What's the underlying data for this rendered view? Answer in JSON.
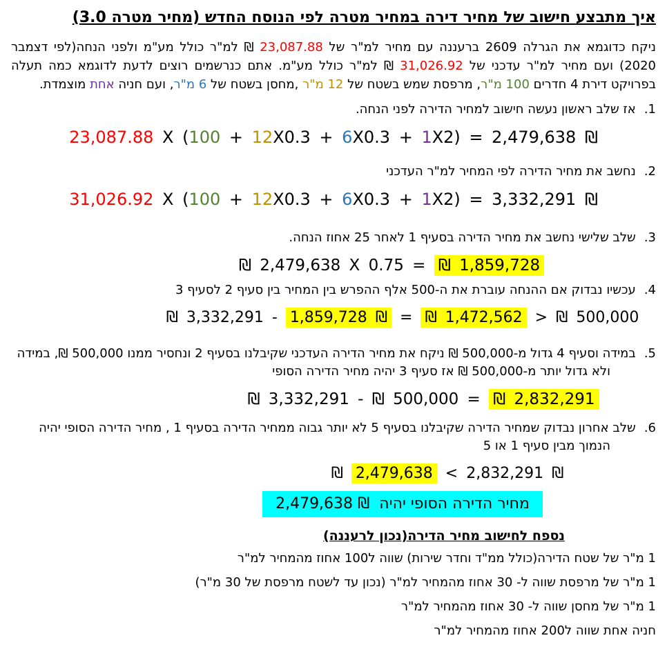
{
  "title": "איך מתבצע חישוב של מחיר דירה במחיר מטרה לפי הנוסח החדש (מחיר מטרה 3.0)",
  "colors": {
    "red": "#FF0000",
    "green": "#538135",
    "gold": "#BF9000",
    "blue": "#2E75B6",
    "purple": "#7030A0",
    "highlight_yellow": "#FFFF00",
    "highlight_cyan": "#00FFFF"
  },
  "intro": {
    "segments": [
      {
        "t": "ניקח כדוגמא את הגרלה 2609 ברעננה עם מחיר למ\"ר של "
      },
      {
        "t": "23,087.88",
        "c": "red"
      },
      {
        "t": " ₪ למ\"ר כולל מע\"מ ולפני הנחה(לפי דצמבר 2020) ועם מחיר למ\"ר עדכני של "
      },
      {
        "t": "31,026.92",
        "c": "red"
      },
      {
        "t": " ₪ למ\"ר כולל מע\"מ. אתם כנרשמים רוצים לדעת לדוגמא כמה תעלה בפרויקט דירת 4 חדרים "
      },
      {
        "t": "100 מ\"ר",
        "c": "green"
      },
      {
        "t": ",  מרפסת שמש בשטח של "
      },
      {
        "t": "12 מ\"ר",
        "c": "gold"
      },
      {
        "t": " ,מחסן בשטח של "
      },
      {
        "t": "6 מ\"ר",
        "c": "blue"
      },
      {
        "t": ",  ועם חניה "
      },
      {
        "t": "אחת",
        "c": "purple"
      },
      {
        "t": " מוצמדת."
      }
    ]
  },
  "steps": [
    {
      "num": "1.",
      "text": "אז שלב ראשון נעשה חישוב למחיר הדירה לפני הנחה.",
      "formula": [
        {
          "t": "23,087.88",
          "c": "red"
        },
        {
          "t": " X ("
        },
        {
          "t": "100",
          "c": "green"
        },
        {
          "t": " + "
        },
        {
          "t": "12",
          "c": "gold"
        },
        {
          "t": "X0.3"
        },
        {
          "t": " + "
        },
        {
          "t": "6",
          "c": "blue"
        },
        {
          "t": "X0.3"
        },
        {
          "t": " + "
        },
        {
          "t": "1",
          "c": "purple"
        },
        {
          "t": "X2)"
        },
        {
          "t": " = 2,479,638 ₪"
        }
      ]
    },
    {
      "num": "2.",
      "text": "נחשב את מחיר הדירה לפי המחיר למ\"ר העדכני",
      "formula": [
        {
          "t": "31,026.92",
          "c": "red"
        },
        {
          "t": " X ("
        },
        {
          "t": "100",
          "c": "green"
        },
        {
          "t": " + "
        },
        {
          "t": "12",
          "c": "gold"
        },
        {
          "t": "X0.3"
        },
        {
          "t": " + "
        },
        {
          "t": "6",
          "c": "blue"
        },
        {
          "t": "X0.3"
        },
        {
          "t": " + "
        },
        {
          "t": "1",
          "c": "purple"
        },
        {
          "t": "X2)"
        },
        {
          "t": " = 3,332,291 ₪"
        }
      ]
    },
    {
      "num": "3.",
      "text": "שלב שלישי נחשב את מחיר הדירה בסעיף 1 לאחר 25 אחוז הנחה.",
      "formula": [
        {
          "t": "₪ 2,479,638 X 0.75 = "
        },
        {
          "t": "₪ 1,859,728",
          "h": "y"
        }
      ]
    },
    {
      "num": "4.",
      "text": "עכשיו נבדוק אם ההנחה  עוברת את ה-500 אלף ההפרש בין המחיר בין סעיף 2 לסעיף 3",
      "formula": [
        {
          "t": "₪ 3,332,291 - "
        },
        {
          "t": "1,859,728 ₪",
          "h": "y"
        },
        {
          "t": " = "
        },
        {
          "t": "₪ 1,472,562",
          "h": "y"
        },
        {
          "t": " > "
        },
        {
          "t": "₪ 500,000"
        }
      ]
    },
    {
      "num": "5.",
      "text": "במידה וסעיף 4 גדול מ-500,000 ₪ ניקח את מחיר הדירה העדכני שקיבלנו בסעיף 2 ונחסיר ממנו 500,000 ₪, במידה ולא גדול יותר מ-500,000 ₪ אז סעיף 3 יהיה מחיר הדירה הסופי",
      "formula": [
        {
          "t": "₪ 3,332,291 - ₪ 500,000 = "
        },
        {
          "t": "₪ 2,832,291",
          "h": "y"
        }
      ]
    },
    {
      "num": "6.",
      "text": "שלב אחרון נבדוק שמחיר הדירה שקיבלנו בסעיף 5 לא יותר גבוה ממחיר הדירה בסעיף 1 ,  מחיר הדירה הסופי יהיה הנמוך מבין סעיף 1 או 5",
      "formula": [
        {
          "t": "₪ "
        },
        {
          "t": "2,479,638",
          "h": "y"
        },
        {
          "t": " < 2,832,291 ₪"
        }
      ]
    }
  ],
  "final_line": {
    "segments": [
      {
        "t": "2,479,638 ₪"
      },
      {
        "t": "מחיר הדירה הסופי יהיה"
      }
    ]
  },
  "appendix": {
    "title": "נספח לחישוב מחיר הדירה(נכון לרעננה)",
    "lines": [
      "1 מ\"ר של שטח הדירה(כולל ממ\"ד וחדר שירות) שווה ל100 אחוז מהמחיר למ\"ר",
      "1 מ\"ר של מרפסת שווה ל- 30 אחוז מהמחיר למ\"ר (נכון עד לשטח מרפסת של 30 מ\"ר)",
      "1 מ\"ר של מחסן שווה ל- 30 אחוז מהמחיר למ\"ר",
      "חניה אחת שווה ל200 אחוז  מהמחיר למ\"ר"
    ]
  }
}
